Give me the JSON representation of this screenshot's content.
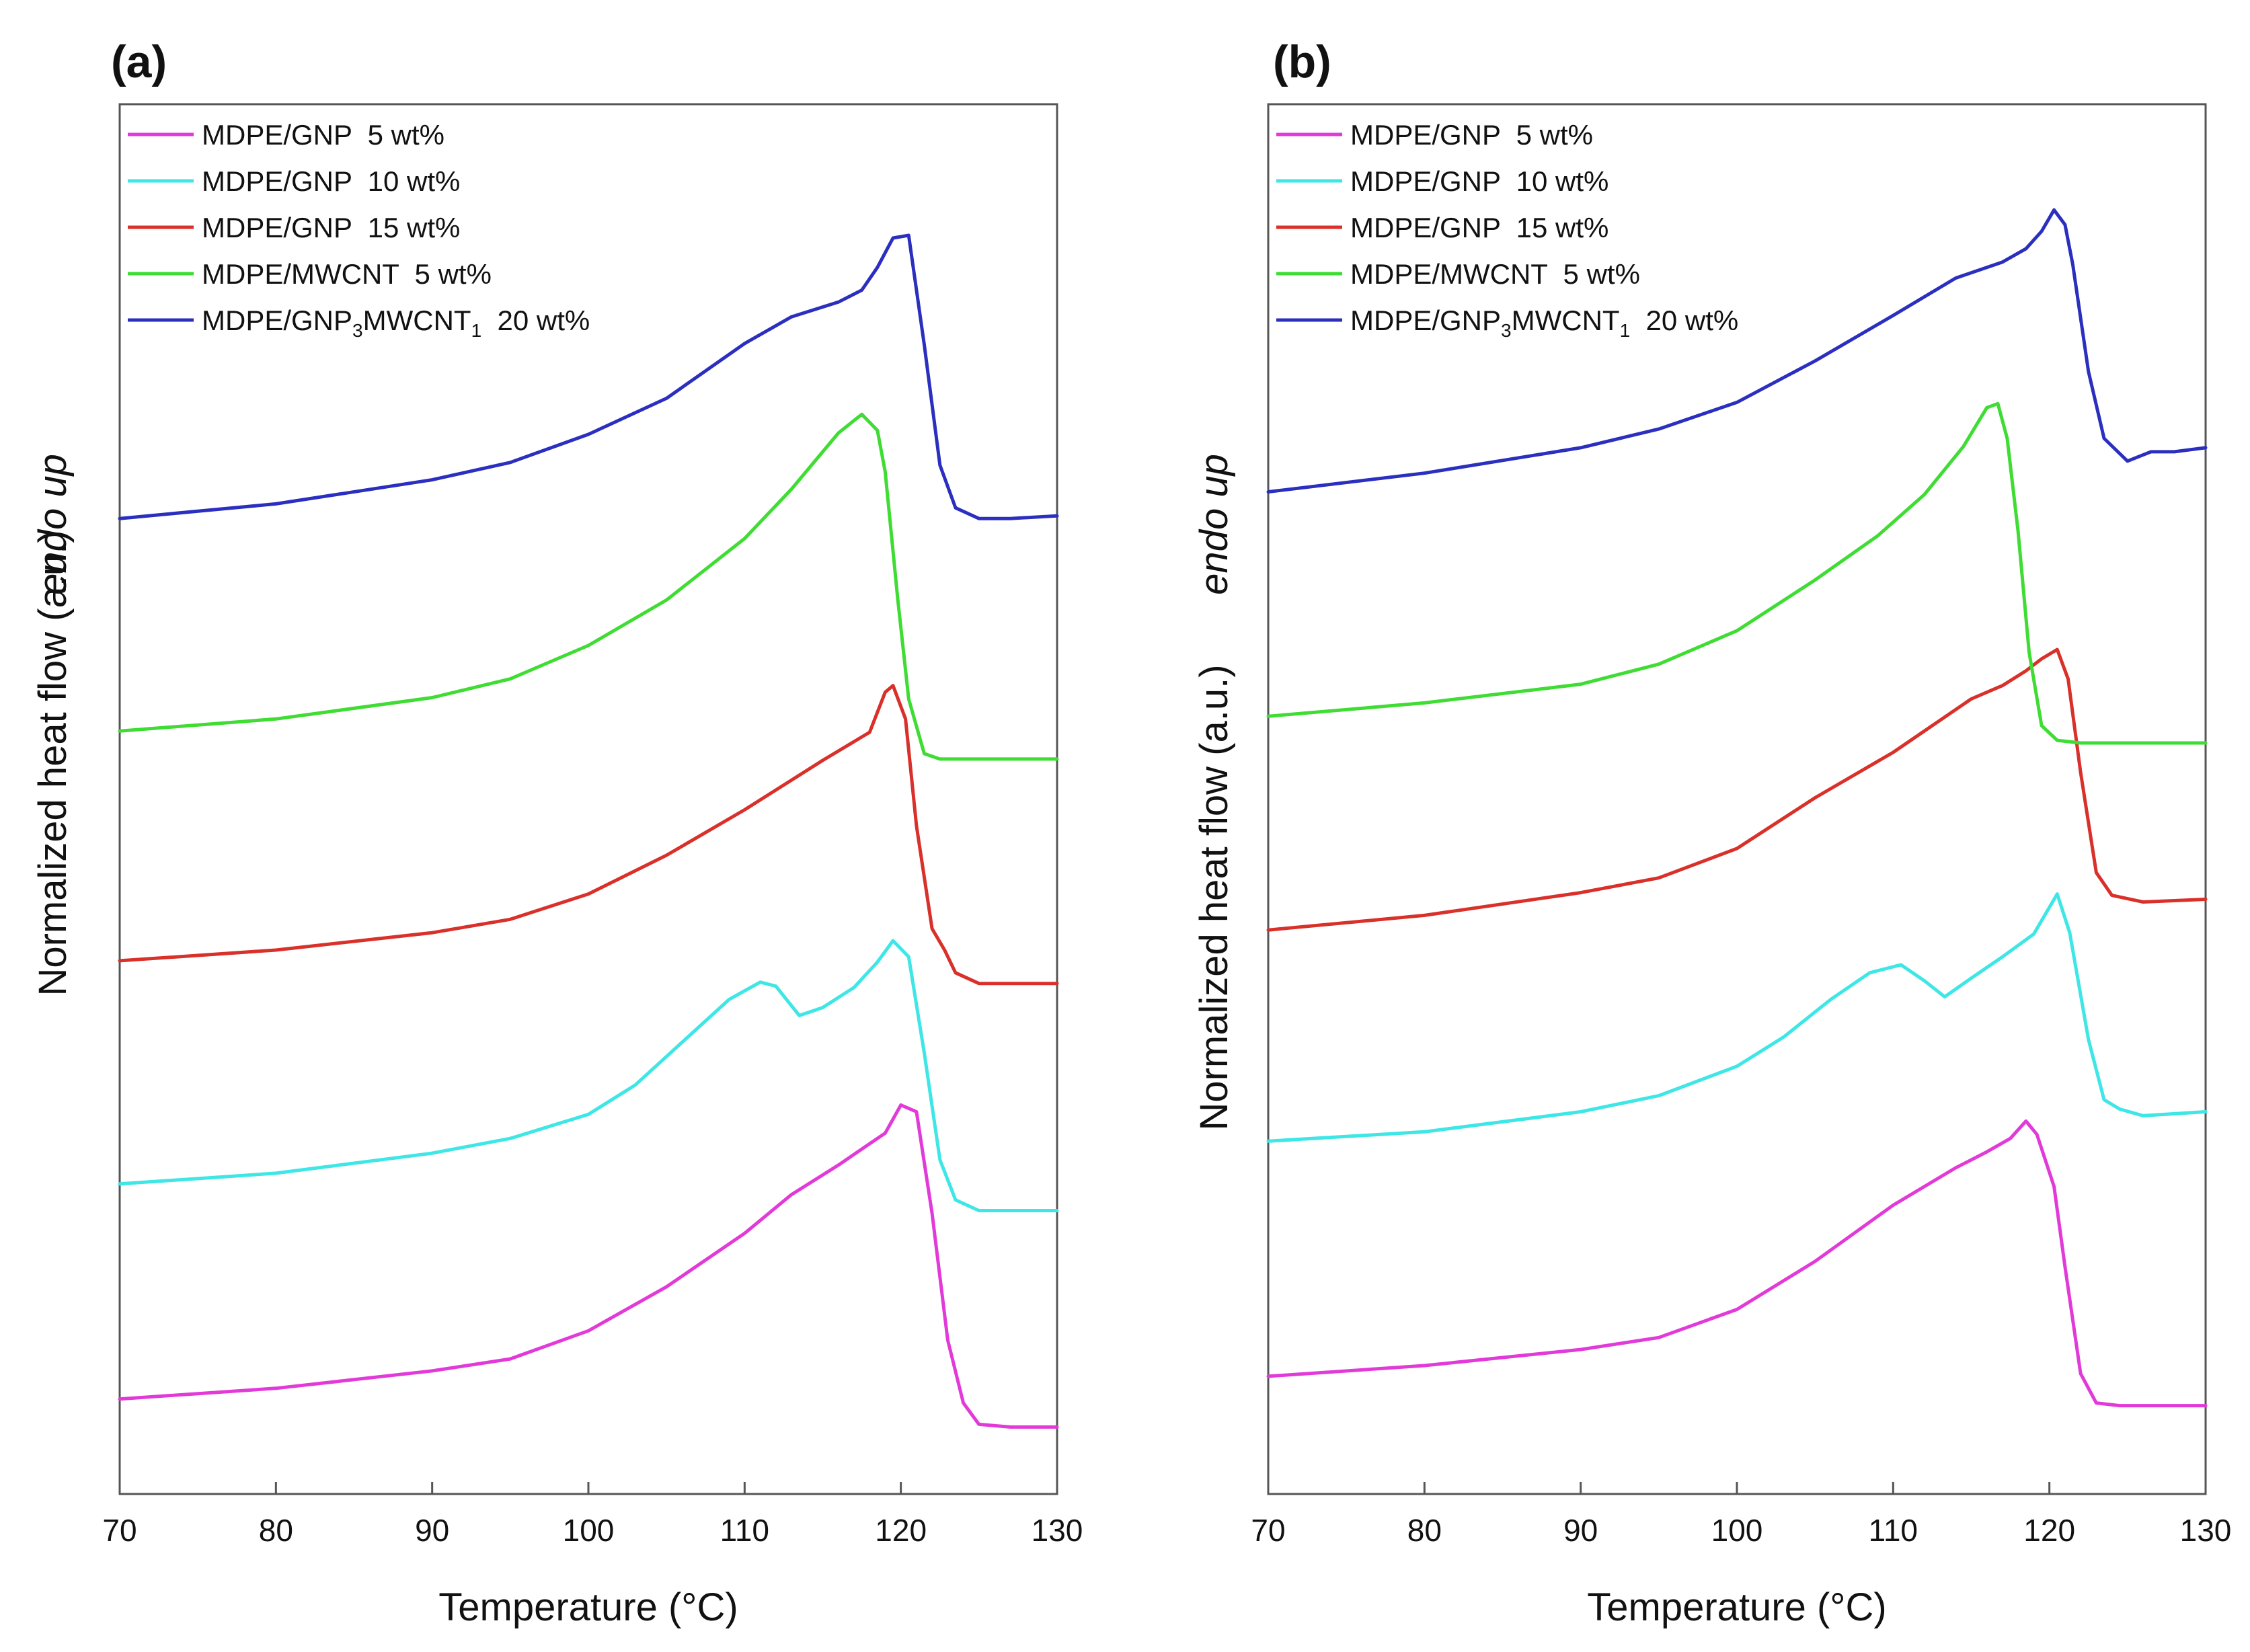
{
  "colors": {
    "magenta": "#e23ad8",
    "cyan": "#3ee6e6",
    "red": "#d9302a",
    "green": "#3fdc33",
    "blue": "#2b2fbf",
    "axis": "#555555",
    "text": "#111111"
  },
  "legend": [
    {
      "key": "gnp5",
      "parts": [
        {
          "t": "MDPE/GNP  5 wt%"
        }
      ]
    },
    {
      "key": "gnp10",
      "parts": [
        {
          "t": "MDPE/GNP  10 wt%"
        }
      ]
    },
    {
      "key": "gnp15",
      "parts": [
        {
          "t": "MDPE/GNP  15 wt%"
        }
      ]
    },
    {
      "key": "mwcnt5",
      "parts": [
        {
          "t": "MDPE/MWCNT  5 wt%"
        }
      ]
    },
    {
      "key": "hybrid20",
      "parts": [
        {
          "t": "MDPE/GNP"
        },
        {
          "t": "3",
          "sub": true
        },
        {
          "t": "MWCNT"
        },
        {
          "t": "1",
          "sub": true
        },
        {
          "t": "  20 wt%"
        }
      ]
    }
  ],
  "chart_data": [
    {
      "panel": "(a)",
      "type": "line",
      "xlabel": "Temperature (°C)",
      "ylabel": "Normalized heat flow (a.u.)",
      "ylabel_italic": "endo up",
      "xlim": [
        70,
        130
      ],
      "ylim": [
        0,
        100
      ],
      "xticks": [
        "70",
        "80",
        "90",
        "100",
        "110",
        "120",
        "130"
      ],
      "y_ticks_shown": false,
      "legend_position": "top-left",
      "series": [
        {
          "key": "gnp5",
          "name": "MDPE/GNP  5 wt%",
          "color": "magenta",
          "points": [
            [
              70,
              5.1
            ],
            [
              80,
              5.9
            ],
            [
              90,
              7.2
            ],
            [
              95,
              8.1
            ],
            [
              100,
              10.2
            ],
            [
              105,
              13.5
            ],
            [
              110,
              17.5
            ],
            [
              113,
              20.4
            ],
            [
              116,
              22.6
            ],
            [
              118,
              24.2
            ],
            [
              119,
              25.0
            ],
            [
              120,
              27.1
            ],
            [
              121,
              26.6
            ],
            [
              122,
              19.0
            ],
            [
              123,
              9.5
            ],
            [
              124,
              4.8
            ],
            [
              125,
              3.2
            ],
            [
              127,
              3.0
            ],
            [
              130,
              3.0
            ]
          ]
        },
        {
          "key": "gnp10",
          "name": "MDPE/GNP  10 wt%",
          "color": "cyan",
          "points": [
            [
              70,
              21.2
            ],
            [
              80,
              22.0
            ],
            [
              90,
              23.5
            ],
            [
              95,
              24.6
            ],
            [
              100,
              26.4
            ],
            [
              103,
              28.6
            ],
            [
              106,
              31.8
            ],
            [
              109,
              35.0
            ],
            [
              111,
              36.3
            ],
            [
              112,
              36.0
            ],
            [
              113.5,
              33.8
            ],
            [
              115,
              34.4
            ],
            [
              117,
              35.9
            ],
            [
              118.5,
              37.8
            ],
            [
              119.5,
              39.4
            ],
            [
              120.5,
              38.2
            ],
            [
              121.5,
              31.0
            ],
            [
              122.5,
              23.0
            ],
            [
              123.5,
              20.0
            ],
            [
              125,
              19.2
            ],
            [
              130,
              19.2
            ]
          ]
        },
        {
          "key": "gnp15",
          "name": "MDPE/GNP  15 wt%",
          "color": "red",
          "points": [
            [
              70,
              37.9
            ],
            [
              80,
              38.7
            ],
            [
              90,
              40.0
            ],
            [
              95,
              41.0
            ],
            [
              100,
              42.9
            ],
            [
              105,
              45.8
            ],
            [
              110,
              49.2
            ],
            [
              115,
              52.9
            ],
            [
              118,
              55.0
            ],
            [
              119,
              58.0
            ],
            [
              119.5,
              58.5
            ],
            [
              120.3,
              56.0
            ],
            [
              121,
              48.0
            ],
            [
              122,
              40.3
            ],
            [
              122.8,
              38.7
            ],
            [
              123.5,
              37.0
            ],
            [
              125,
              36.2
            ],
            [
              130,
              36.2
            ]
          ]
        },
        {
          "key": "mwcnt5",
          "name": "MDPE/MWCNT  5 wt%",
          "color": "green",
          "points": [
            [
              70,
              55.1
            ],
            [
              80,
              56.0
            ],
            [
              90,
              57.6
            ],
            [
              95,
              59.0
            ],
            [
              100,
              61.5
            ],
            [
              105,
              64.9
            ],
            [
              110,
              69.5
            ],
            [
              113,
              73.2
            ],
            [
              116,
              77.4
            ],
            [
              117.5,
              78.8
            ],
            [
              118.5,
              77.6
            ],
            [
              119,
              74.5
            ],
            [
              119.8,
              65.0
            ],
            [
              120.5,
              57.5
            ],
            [
              121.5,
              53.4
            ],
            [
              122.5,
              53.0
            ],
            [
              130,
              53.0
            ]
          ]
        },
        {
          "key": "hybrid20",
          "name": "MDPE/GNP3MWCNT1  20 wt%",
          "color": "blue",
          "points": [
            [
              70,
              71.0
            ],
            [
              80,
              72.1
            ],
            [
              90,
              73.9
            ],
            [
              95,
              75.2
            ],
            [
              100,
              77.3
            ],
            [
              105,
              80.0
            ],
            [
              110,
              84.1
            ],
            [
              113,
              86.1
            ],
            [
              116,
              87.2
            ],
            [
              117.5,
              88.1
            ],
            [
              118.5,
              89.8
            ],
            [
              119.5,
              92.0
            ],
            [
              120.5,
              92.2
            ],
            [
              121.5,
              84.0
            ],
            [
              122.5,
              75.0
            ],
            [
              123.5,
              71.8
            ],
            [
              125,
              71.0
            ],
            [
              127,
              71.0
            ],
            [
              130,
              71.2
            ]
          ]
        }
      ]
    },
    {
      "panel": "(b)",
      "type": "line",
      "xlabel": "Temperature (°C)",
      "ylabel": "Normalized heat flow (a.u.)",
      "ylabel_italic": "endo up",
      "xlim": [
        70,
        130
      ],
      "ylim": [
        0,
        100
      ],
      "xticks": [
        "70",
        "80",
        "90",
        "100",
        "110",
        "120",
        "130"
      ],
      "y_ticks_shown": false,
      "legend_position": "top-left",
      "series": [
        {
          "key": "gnp5",
          "name": "MDPE/GNP  5 wt%",
          "color": "magenta",
          "points": [
            [
              70,
              6.8
            ],
            [
              80,
              7.6
            ],
            [
              90,
              8.8
            ],
            [
              95,
              9.7
            ],
            [
              100,
              11.8
            ],
            [
              105,
              15.4
            ],
            [
              110,
              19.6
            ],
            [
              114,
              22.4
            ],
            [
              116,
              23.6
            ],
            [
              117.5,
              24.6
            ],
            [
              118.5,
              25.9
            ],
            [
              119.2,
              24.9
            ],
            [
              120.3,
              21.0
            ],
            [
              121,
              15.0
            ],
            [
              122,
              7.0
            ],
            [
              123,
              4.8
            ],
            [
              124.5,
              4.6
            ],
            [
              130,
              4.6
            ]
          ]
        },
        {
          "key": "gnp10",
          "name": "MDPE/GNP  10 wt%",
          "color": "cyan",
          "points": [
            [
              70,
              24.4
            ],
            [
              80,
              25.1
            ],
            [
              90,
              26.6
            ],
            [
              95,
              27.8
            ],
            [
              100,
              30.0
            ],
            [
              103,
              32.2
            ],
            [
              106,
              35.0
            ],
            [
              108.5,
              37.0
            ],
            [
              110.5,
              37.6
            ],
            [
              112,
              36.4
            ],
            [
              113.3,
              35.2
            ],
            [
              115,
              36.6
            ],
            [
              117,
              38.2
            ],
            [
              119,
              39.9
            ],
            [
              120.5,
              42.9
            ],
            [
              121.3,
              40.0
            ],
            [
              122.5,
              32.0
            ],
            [
              123.5,
              27.5
            ],
            [
              124.5,
              26.8
            ],
            [
              126,
              26.3
            ],
            [
              130,
              26.6
            ]
          ]
        },
        {
          "key": "gnp15",
          "name": "MDPE/GNP  15 wt%",
          "color": "red",
          "points": [
            [
              70,
              40.2
            ],
            [
              80,
              41.3
            ],
            [
              90,
              43.0
            ],
            [
              95,
              44.1
            ],
            [
              100,
              46.3
            ],
            [
              105,
              50.1
            ],
            [
              110,
              53.5
            ],
            [
              115,
              57.5
            ],
            [
              117,
              58.5
            ],
            [
              118.5,
              59.6
            ],
            [
              119.5,
              60.5
            ],
            [
              120.5,
              61.2
            ],
            [
              121.2,
              59.0
            ],
            [
              122,
              52.0
            ],
            [
              123,
              44.5
            ],
            [
              124,
              42.8
            ],
            [
              126,
              42.3
            ],
            [
              130,
              42.5
            ]
          ]
        },
        {
          "key": "mwcnt5",
          "name": "MDPE/MWCNT  5 wt%",
          "color": "green",
          "points": [
            [
              70,
              56.2
            ],
            [
              80,
              57.2
            ],
            [
              90,
              58.6
            ],
            [
              95,
              60.1
            ],
            [
              100,
              62.6
            ],
            [
              105,
              66.4
            ],
            [
              109,
              69.7
            ],
            [
              112,
              72.8
            ],
            [
              114.5,
              76.4
            ],
            [
              116,
              79.3
            ],
            [
              116.7,
              79.6
            ],
            [
              117.3,
              77.0
            ],
            [
              118,
              70.0
            ],
            [
              118.7,
              61.0
            ],
            [
              119.5,
              55.5
            ],
            [
              120.5,
              54.4
            ],
            [
              122,
              54.2
            ],
            [
              130,
              54.2
            ]
          ]
        },
        {
          "key": "hybrid20",
          "name": "MDPE/GNP3MWCNT1  20 wt%",
          "color": "blue",
          "points": [
            [
              70,
              73.0
            ],
            [
              80,
              74.4
            ],
            [
              90,
              76.3
            ],
            [
              95,
              77.7
            ],
            [
              100,
              79.7
            ],
            [
              105,
              82.8
            ],
            [
              110,
              86.2
            ],
            [
              114,
              89.0
            ],
            [
              117,
              90.2
            ],
            [
              118.5,
              91.2
            ],
            [
              119.5,
              92.5
            ],
            [
              120.3,
              94.1
            ],
            [
              121,
              93.0
            ],
            [
              121.5,
              90.0
            ],
            [
              122.5,
              82.0
            ],
            [
              123.5,
              77.0
            ],
            [
              125,
              75.3
            ],
            [
              126.5,
              76.0
            ],
            [
              128,
              76.0
            ],
            [
              130,
              76.3
            ]
          ]
        }
      ]
    }
  ]
}
